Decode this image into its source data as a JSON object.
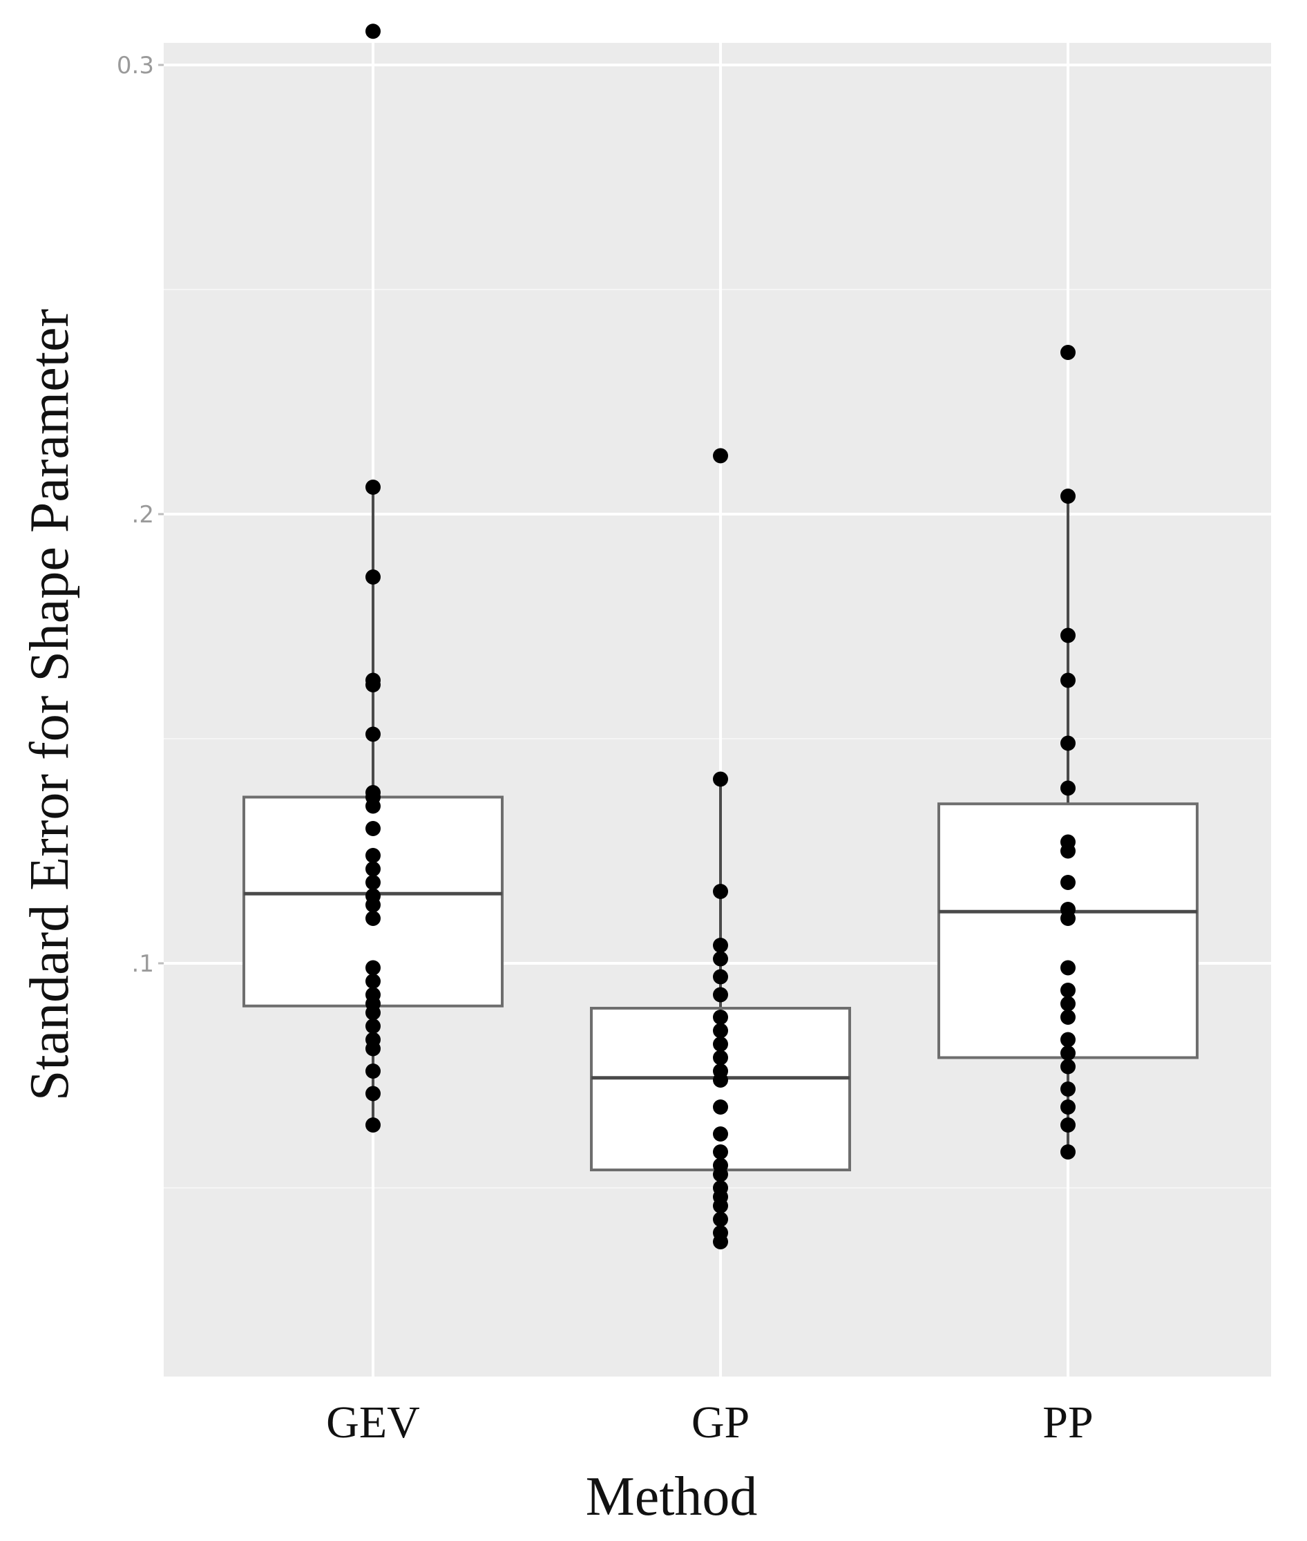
{
  "chart_data": {
    "type": "box",
    "xlabel": "Method",
    "ylabel": "Standard Error for Shape Parameter",
    "categories": [
      "GEV",
      "GP",
      "PP"
    ],
    "y_ticks": [
      {
        "value": 0.1,
        "label": ".1"
      },
      {
        "value": 0.2,
        "label": ".2"
      },
      {
        "value": 0.3,
        "label": "0.3"
      }
    ],
    "ylim": [
      0.025,
      0.323
    ],
    "grid": true,
    "boxes": [
      {
        "name": "GEV",
        "lower_whisker": 0.064,
        "q1": 0.0905,
        "median": 0.1155,
        "q3": 0.137,
        "upper_whisker": 0.206
      },
      {
        "name": "GP",
        "lower_whisker": 0.04,
        "q1": 0.054,
        "median": 0.0745,
        "q3": 0.09,
        "upper_whisker": 0.141
      },
      {
        "name": "PP",
        "lower_whisker": 0.058,
        "q1": 0.079,
        "median": 0.1115,
        "q3": 0.1355,
        "upper_whisker": 0.204
      }
    ],
    "points": [
      {
        "name": "GEV",
        "values": [
          0.3075,
          0.206,
          0.186,
          0.163,
          0.162,
          0.151,
          0.138,
          0.137,
          0.135,
          0.13,
          0.124,
          0.121,
          0.118,
          0.115,
          0.113,
          0.11,
          0.099,
          0.096,
          0.093,
          0.091,
          0.089,
          0.086,
          0.083,
          0.081,
          0.076,
          0.071,
          0.064
        ]
      },
      {
        "name": "GP",
        "values": [
          0.213,
          0.141,
          0.116,
          0.104,
          0.101,
          0.097,
          0.093,
          0.088,
          0.085,
          0.082,
          0.079,
          0.076,
          0.074,
          0.068,
          0.062,
          0.058,
          0.055,
          0.053,
          0.05,
          0.048,
          0.046,
          0.043,
          0.04,
          0.038
        ]
      },
      {
        "name": "PP",
        "values": [
          0.236,
          0.204,
          0.173,
          0.163,
          0.149,
          0.139,
          0.127,
          0.125,
          0.118,
          0.112,
          0.11,
          0.099,
          0.094,
          0.091,
          0.088,
          0.083,
          0.08,
          0.077,
          0.072,
          0.068,
          0.064,
          0.058
        ]
      }
    ]
  }
}
